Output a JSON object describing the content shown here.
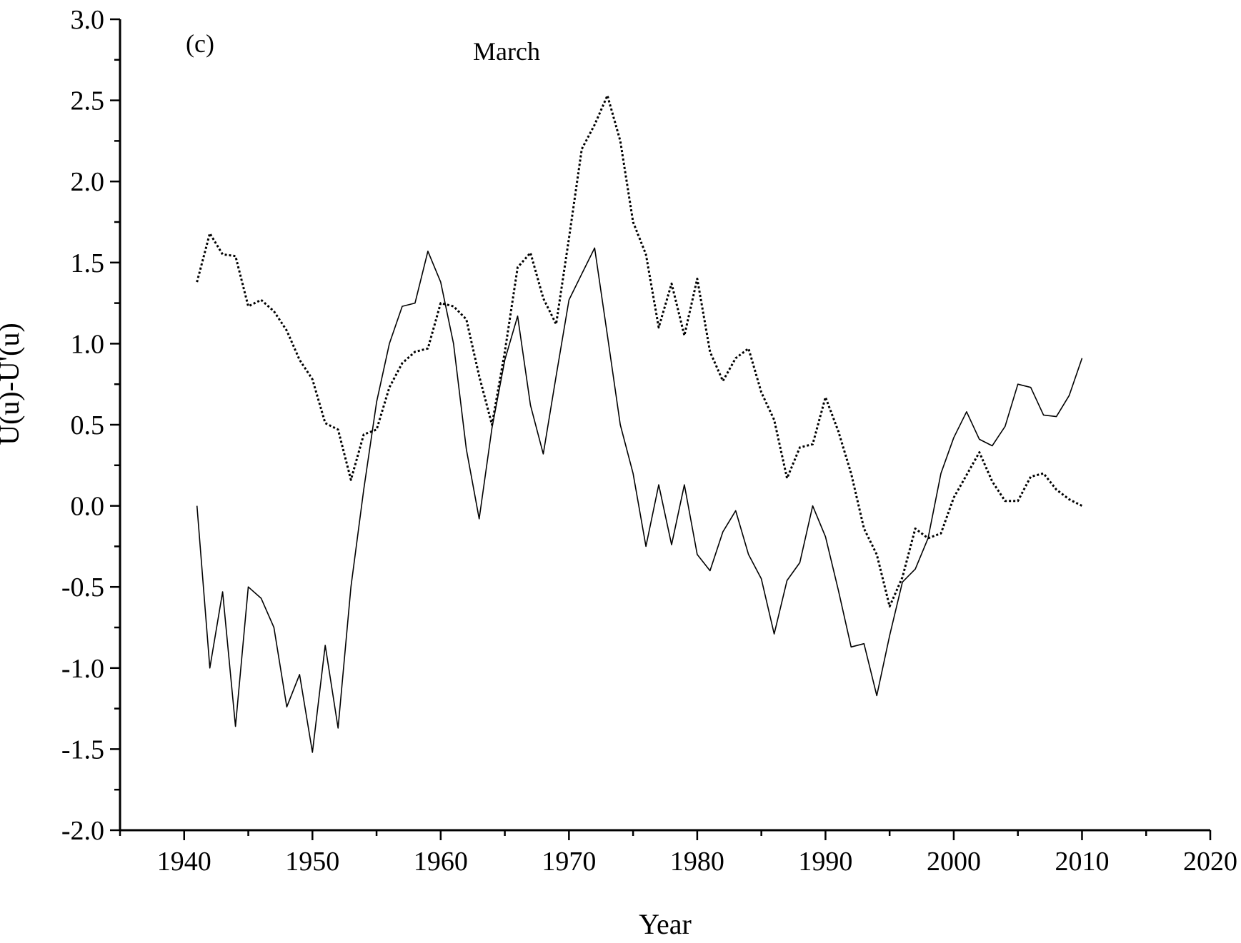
{
  "chart_data": {
    "type": "line",
    "panel_label": "(c)",
    "title": "March",
    "xlabel": "Year",
    "ylabel": "U(u)-U'(u)",
    "xlim": [
      1935,
      2020
    ],
    "ylim": [
      -2.0,
      3.0
    ],
    "x_ticks": [
      "1940",
      "1950",
      "1960",
      "1970",
      "1980",
      "1990",
      "2000",
      "2010",
      "2020"
    ],
    "y_ticks": [
      "3.0",
      "2.5",
      "2.0",
      "1.5",
      "1.0",
      "0.5",
      "0.0",
      "-0.5",
      "-1.0",
      "-1.5",
      "-2.0"
    ],
    "grid": false,
    "x": [
      1941,
      1942,
      1943,
      1944,
      1945,
      1946,
      1947,
      1948,
      1949,
      1950,
      1951,
      1952,
      1953,
      1954,
      1955,
      1956,
      1957,
      1958,
      1959,
      1960,
      1961,
      1962,
      1963,
      1964,
      1965,
      1966,
      1967,
      1968,
      1969,
      1970,
      1971,
      1972,
      1973,
      1974,
      1975,
      1976,
      1977,
      1978,
      1979,
      1980,
      1981,
      1982,
      1983,
      1984,
      1985,
      1986,
      1987,
      1988,
      1989,
      1990,
      1991,
      1992,
      1993,
      1994,
      1995,
      1996,
      1997,
      1998,
      1999,
      2000,
      2001,
      2002,
      2003,
      2004,
      2005,
      2006,
      2007,
      2008,
      2009,
      2010
    ],
    "series": [
      {
        "style": "solid",
        "values": [
          0.0,
          -1.0,
          -0.53,
          -1.36,
          -0.5,
          -0.57,
          -0.75,
          -1.24,
          -1.04,
          -1.52,
          -0.86,
          -1.37,
          -0.5,
          0.1,
          0.64,
          1.0,
          1.23,
          1.25,
          1.57,
          1.38,
          1.0,
          0.35,
          -0.08,
          0.48,
          0.9,
          1.17,
          0.62,
          0.32,
          0.8,
          1.27,
          1.43,
          1.59,
          1.05,
          0.5,
          0.2,
          -0.25,
          0.13,
          -0.24,
          0.13,
          -0.3,
          -0.4,
          -0.16,
          -0.03,
          -0.3,
          -0.45,
          -0.79,
          -0.46,
          -0.35,
          0.0,
          -0.19,
          -0.52,
          -0.87,
          -0.85,
          -1.17,
          -0.8,
          -0.47,
          -0.39,
          -0.2,
          0.2,
          0.42,
          0.58,
          0.41,
          0.37,
          0.49,
          0.75,
          0.73,
          0.56,
          0.55,
          0.68,
          0.91
        ]
      },
      {
        "style": "dotted",
        "values": [
          1.38,
          1.68,
          1.55,
          1.54,
          1.23,
          1.27,
          1.2,
          1.08,
          0.9,
          0.78,
          0.51,
          0.47,
          0.16,
          0.44,
          0.47,
          0.73,
          0.88,
          0.95,
          0.97,
          1.25,
          1.23,
          1.15,
          0.8,
          0.5,
          0.95,
          1.47,
          1.56,
          1.28,
          1.12,
          1.65,
          2.2,
          2.35,
          2.53,
          2.25,
          1.75,
          1.55,
          1.1,
          1.37,
          1.05,
          1.4,
          0.95,
          0.77,
          0.91,
          0.97,
          0.7,
          0.53,
          0.17,
          0.36,
          0.38,
          0.67,
          0.46,
          0.2,
          -0.14,
          -0.3,
          -0.62,
          -0.44,
          -0.14,
          -0.2,
          -0.17,
          0.05,
          0.19,
          0.33,
          0.15,
          0.03,
          0.03,
          0.18,
          0.2,
          0.1,
          0.04,
          0.0
        ]
      }
    ]
  }
}
